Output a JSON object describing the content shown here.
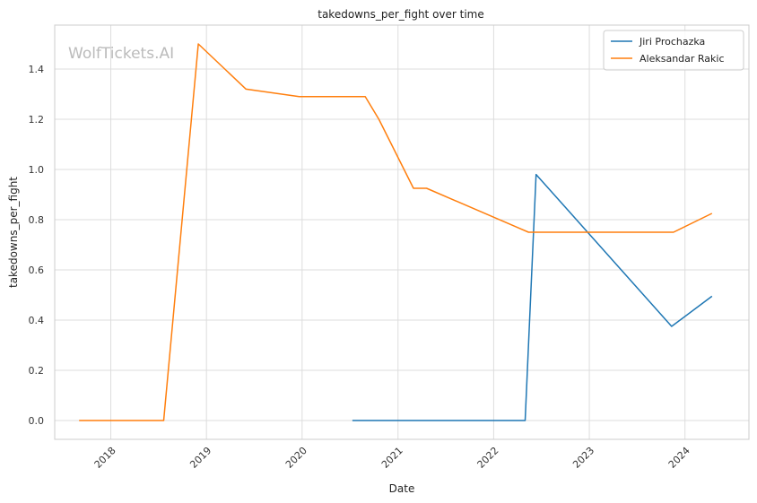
{
  "chart_data": {
    "type": "line",
    "title": "takedowns_per_fight over time",
    "xlabel": "Date",
    "ylabel": "takedowns_per_fight",
    "watermark": "WolfTickets.AI",
    "xlim": [
      "2017-06-01",
      "2024-09-01"
    ],
    "ylim": [
      -0.075,
      1.575
    ],
    "x_ticks": [
      "2018-01-01",
      "2019-01-01",
      "2020-01-01",
      "2021-01-01",
      "2022-01-01",
      "2023-01-01",
      "2024-01-01"
    ],
    "x_tick_labels": [
      "2018",
      "2019",
      "2020",
      "2021",
      "2022",
      "2023",
      "2024"
    ],
    "y_ticks": [
      0.0,
      0.2,
      0.4,
      0.6,
      0.8,
      1.0,
      1.2,
      1.4
    ],
    "y_tick_labels": [
      "0.0",
      "0.2",
      "0.4",
      "0.6",
      "0.8",
      "1.0",
      "1.2",
      "1.4"
    ],
    "grid": true,
    "legend_position": "top-right",
    "series": [
      {
        "name": "Jiri Prochazka",
        "color": "#1f77b4",
        "x": [
          "2020-07-11",
          "2022-05-01",
          "2022-06-12",
          "2023-11-11",
          "2024-04-13"
        ],
        "y": [
          0.0,
          0.0,
          0.98,
          0.375,
          0.495
        ]
      },
      {
        "name": "Aleksandar Rakic",
        "color": "#ff7f0e",
        "x": [
          "2017-09-02",
          "2018-07-22",
          "2018-12-01",
          "2019-06-01",
          "2019-12-21",
          "2020-08-29",
          "2020-10-20",
          "2021-03-01",
          "2021-04-20",
          "2022-05-14",
          "2023-11-18",
          "2024-04-13"
        ],
        "y": [
          0.0,
          0.0,
          1.5,
          1.32,
          1.29,
          1.29,
          1.2,
          0.925,
          0.925,
          0.75,
          0.75,
          0.825
        ]
      }
    ]
  }
}
